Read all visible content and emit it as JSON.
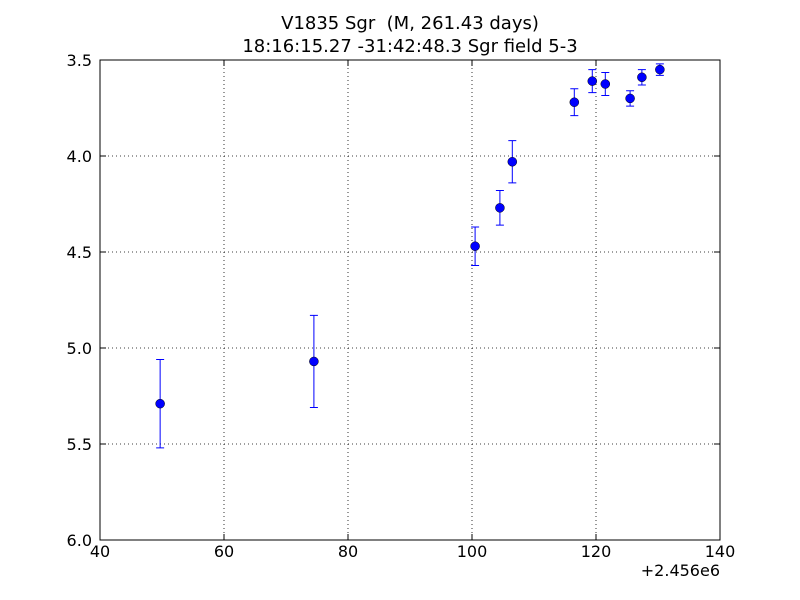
{
  "chart_data": {
    "type": "errorbar",
    "title": "V1835 Sgr  (M, 261.43 days)",
    "subtitle": "18:16:15.27 -31:42:48.3 Sgr field 5-3",
    "x": [
      49.7,
      74.5,
      100.5,
      104.5,
      106.5,
      116.5,
      119.4,
      121.5,
      125.5,
      127.4,
      130.3
    ],
    "y": [
      5.29,
      5.07,
      4.47,
      4.27,
      4.03,
      3.72,
      3.61,
      3.625,
      3.7,
      3.59,
      3.55
    ],
    "yerr": [
      0.23,
      0.24,
      0.1,
      0.09,
      0.11,
      0.07,
      0.06,
      0.06,
      0.04,
      0.04,
      0.03
    ],
    "color": "#0000ff",
    "xlim": [
      40,
      140
    ],
    "xticks": [
      40,
      60,
      80,
      100,
      120,
      140
    ],
    "x_offset_label": "+2.456e6",
    "ylim": [
      6,
      3.5
    ],
    "yticks": [
      3.5,
      {
        "value": 4,
        "label": "4.0"
      },
      4.5,
      {
        "value": 5,
        "label": "5.0"
      },
      5.5,
      {
        "value": 6,
        "label": "6.0"
      }
    ],
    "grid": true
  }
}
